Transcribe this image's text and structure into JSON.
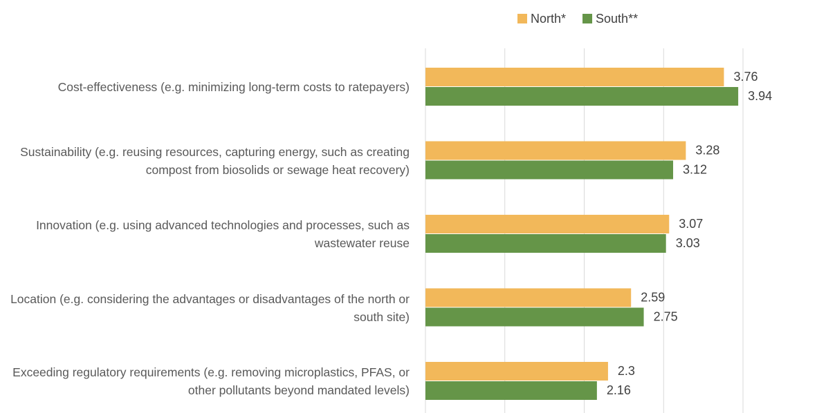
{
  "chart_data": {
    "type": "hbar",
    "categories": [
      "Cost-effectiveness (e.g. minimizing long-term costs to ratepayers)",
      "Sustainability (e.g. reusing resources, capturing energy, such as creating compost from biosolids or sewage heat recovery)",
      "Innovation (e.g. using advanced technologies and processes, such as wastewater reuse",
      "Location (e.g. considering the advantages or disadvantages of the north or south site)",
      "Exceeding regulatory requirements (e.g. removing microplastics, PFAS, or other pollutants beyond mandated levels)"
    ],
    "series": [
      {
        "name": "North*",
        "color": "#f2b85a",
        "values": [
          3.76,
          3.28,
          3.07,
          2.59,
          2.3
        ]
      },
      {
        "name": "South**",
        "color": "#659548",
        "values": [
          3.94,
          3.12,
          3.03,
          2.75,
          2.16
        ]
      }
    ],
    "xlim": [
      0,
      4
    ],
    "xticks": [
      0,
      1,
      2,
      3,
      4
    ],
    "grid": true,
    "legend": "top"
  }
}
